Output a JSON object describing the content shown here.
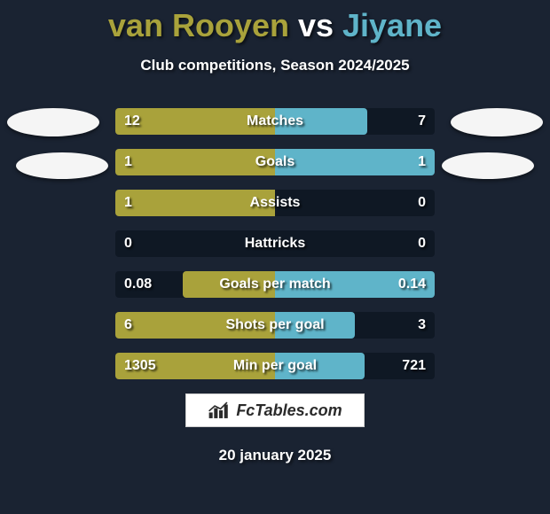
{
  "title_parts": [
    "van Rooyen",
    " vs ",
    "Jiyane"
  ],
  "title_color_left": "#a9a23b",
  "title_color_vs": "#ffffff",
  "title_color_right": "#5fb4c9",
  "title_fontsize": 36,
  "subtitle": "Club competitions, Season 2024/2025",
  "subtitle_fontsize": 17,
  "date_text": "20 january 2025",
  "date_fontsize": 17,
  "brand_text": "FcTables.com",
  "background_color": "#1a2332",
  "row_bg_color": "#0f1824",
  "left_bar_color": "#a9a23b",
  "right_bar_color": "#5fb4c9",
  "value_fontsize": 16,
  "label_fontsize": 16,
  "crest_color": "#f5f5f5",
  "rows": [
    {
      "label": "Matches",
      "left_val": "12",
      "right_val": "7",
      "left_pct": 50,
      "right_pct": 29
    },
    {
      "label": "Goals",
      "left_val": "1",
      "right_val": "1",
      "left_pct": 50,
      "right_pct": 50
    },
    {
      "label": "Assists",
      "left_val": "1",
      "right_val": "0",
      "left_pct": 50,
      "right_pct": 0
    },
    {
      "label": "Hattricks",
      "left_val": "0",
      "right_val": "0",
      "left_pct": 0,
      "right_pct": 0
    },
    {
      "label": "Goals per match",
      "left_val": "0.08",
      "right_val": "0.14",
      "left_pct": 29,
      "right_pct": 50
    },
    {
      "label": "Shots per goal",
      "left_val": "6",
      "right_val": "3",
      "left_pct": 50,
      "right_pct": 25
    },
    {
      "label": "Min per goal",
      "left_val": "1305",
      "right_val": "721",
      "left_pct": 50,
      "right_pct": 28
    }
  ]
}
